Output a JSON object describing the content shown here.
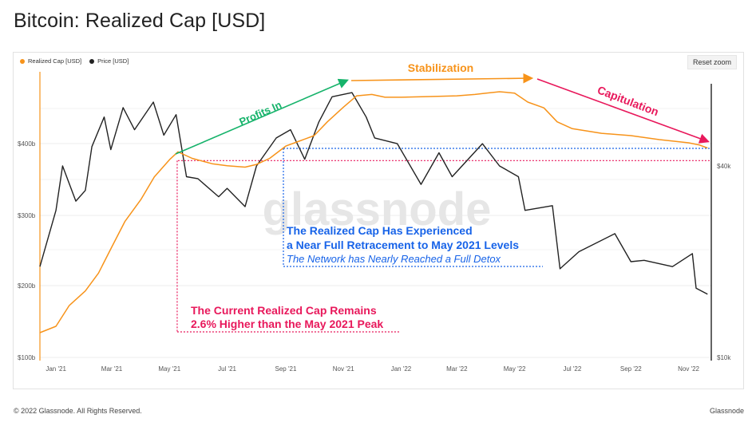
{
  "page": {
    "title": "Bitcoin: Realized Cap [USD]",
    "footer_copyright": "© 2022 Glassnode. All Rights Reserved.",
    "footer_brand": "Glassnode",
    "watermark": "glassnode",
    "reset_zoom": "Reset zoom"
  },
  "legend": [
    {
      "label": "Realized Cap [USD]",
      "color": "#f7931a"
    },
    {
      "label": "Price [USD]",
      "color": "#222222"
    }
  ],
  "chart_data": {
    "type": "line",
    "x_ticks": [
      "Jan '21",
      "Mar '21",
      "May '21",
      "Jul '21",
      "Sep '21",
      "Nov '21",
      "Jan '22",
      "Mar '22",
      "May '22",
      "Jul '22",
      "Sep '22",
      "Nov '22"
    ],
    "y_left_ticks": [
      "$100b",
      "$200b",
      "$300b",
      "$400b"
    ],
    "y_right_ticks": [
      "$10k",
      "$40k"
    ],
    "y_left_scale": "log",
    "y_right_scale": "log",
    "grid": true,
    "legend_position": "top-left",
    "series": [
      {
        "name": "Realized Cap [USD]",
        "color": "#f7931a",
        "axis": "left",
        "points": [
          [
            "2020-12-15",
            127
          ],
          [
            "2021-01-01",
            135
          ],
          [
            "2021-01-15",
            165
          ],
          [
            "2021-02-01",
            190
          ],
          [
            "2021-02-15",
            215
          ],
          [
            "2021-03-01",
            250
          ],
          [
            "2021-03-15",
            290
          ],
          [
            "2021-04-01",
            320
          ],
          [
            "2021-04-15",
            350
          ],
          [
            "2021-05-01",
            375
          ],
          [
            "2021-05-10",
            387
          ],
          [
            "2021-05-25",
            377
          ],
          [
            "2021-06-15",
            369
          ],
          [
            "2021-07-01",
            366
          ],
          [
            "2021-07-20",
            364
          ],
          [
            "2021-08-01",
            368
          ],
          [
            "2021-08-15",
            377
          ],
          [
            "2021-09-01",
            396
          ],
          [
            "2021-09-15",
            403
          ],
          [
            "2021-10-01",
            410
          ],
          [
            "2021-10-15",
            428
          ],
          [
            "2021-11-01",
            448
          ],
          [
            "2021-11-15",
            464
          ],
          [
            "2021-12-01",
            466
          ],
          [
            "2021-12-15",
            462
          ],
          [
            "2022-01-01",
            462
          ],
          [
            "2022-02-01",
            463
          ],
          [
            "2022-03-01",
            464
          ],
          [
            "2022-03-20",
            466
          ],
          [
            "2022-04-01",
            468
          ],
          [
            "2022-04-15",
            470
          ],
          [
            "2022-05-01",
            468
          ],
          [
            "2022-05-15",
            455
          ],
          [
            "2022-06-01",
            447
          ],
          [
            "2022-06-15",
            428
          ],
          [
            "2022-07-01",
            419
          ],
          [
            "2022-08-01",
            413
          ],
          [
            "2022-09-01",
            410
          ],
          [
            "2022-10-01",
            405
          ],
          [
            "2022-11-01",
            401
          ],
          [
            "2022-11-12",
            398
          ],
          [
            "2022-11-21",
            393
          ]
        ]
      },
      {
        "name": "Price [USD]",
        "color": "#222222",
        "axis": "right",
        "points": [
          [
            "2020-12-15",
            19300
          ],
          [
            "2021-01-01",
            29000
          ],
          [
            "2021-01-08",
            40000
          ],
          [
            "2021-01-22",
            31000
          ],
          [
            "2021-02-01",
            33500
          ],
          [
            "2021-02-08",
            46000
          ],
          [
            "2021-02-21",
            57000
          ],
          [
            "2021-02-28",
            45000
          ],
          [
            "2021-03-13",
            61000
          ],
          [
            "2021-03-25",
            52000
          ],
          [
            "2021-04-14",
            63500
          ],
          [
            "2021-04-25",
            50000
          ],
          [
            "2021-05-08",
            58000
          ],
          [
            "2021-05-19",
            37000
          ],
          [
            "2021-05-31",
            36500
          ],
          [
            "2021-06-22",
            32000
          ],
          [
            "2021-07-01",
            34000
          ],
          [
            "2021-07-20",
            29800
          ],
          [
            "2021-08-01",
            40000
          ],
          [
            "2021-08-22",
            49000
          ],
          [
            "2021-09-06",
            52000
          ],
          [
            "2021-09-21",
            42000
          ],
          [
            "2021-10-06",
            55000
          ],
          [
            "2021-10-20",
            66000
          ],
          [
            "2021-11-10",
            68000
          ],
          [
            "2021-11-25",
            57000
          ],
          [
            "2021-12-04",
            49000
          ],
          [
            "2021-12-28",
            47000
          ],
          [
            "2022-01-22",
            35000
          ],
          [
            "2022-02-10",
            44000
          ],
          [
            "2022-02-24",
            37000
          ],
          [
            "2022-03-28",
            47000
          ],
          [
            "2022-04-15",
            40000
          ],
          [
            "2022-05-05",
            37000
          ],
          [
            "2022-05-12",
            29000
          ],
          [
            "2022-06-10",
            30000
          ],
          [
            "2022-06-18",
            19000
          ],
          [
            "2022-07-08",
            21500
          ],
          [
            "2022-08-15",
            24500
          ],
          [
            "2022-09-01",
            20000
          ],
          [
            "2022-09-15",
            20200
          ],
          [
            "2022-10-15",
            19300
          ],
          [
            "2022-11-05",
            21200
          ],
          [
            "2022-11-09",
            16500
          ],
          [
            "2022-11-21",
            15800
          ]
        ]
      }
    ],
    "annotations": {
      "profits_in": "Profits In",
      "stabilization": "Stabilization",
      "capitulation": "Capitulation",
      "blue_line1": "The Realized Cap Has Experienced",
      "blue_line2": "a Near Full Retracement to May 2021 Levels",
      "blue_line3": "The Network has Nearly Reached a Full Detox",
      "red_line1": "The Current Realized Cap Remains",
      "red_line2": "2.6% Higher than the May 2021 Peak"
    },
    "colors": {
      "green": "#16b36b",
      "orange": "#f7931a",
      "pink": "#e8185b",
      "blue": "#1763e8"
    }
  }
}
